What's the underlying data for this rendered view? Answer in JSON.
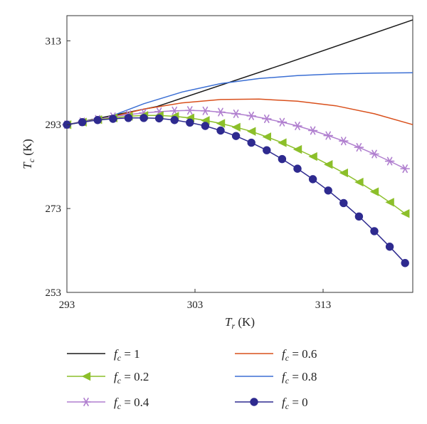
{
  "chart_data": {
    "type": "line",
    "xlabel": {
      "main": "T",
      "sub": "r",
      "unit": " (K)"
    },
    "ylabel": {
      "main": "T",
      "sub": "c",
      "unit": " (K)"
    },
    "xlim": [
      293,
      320
    ],
    "ylim": [
      253,
      319
    ],
    "xticks": [
      293,
      303,
      313
    ],
    "yticks": [
      253,
      273,
      293,
      313
    ],
    "grid": false,
    "legend_position": "bottom",
    "series": [
      {
        "name": "f_c = 1",
        "legend_prefix": "f",
        "legend_sub": "c",
        "legend_value": " = 1",
        "color": "#1a1a1a",
        "marker": "none",
        "x": [
          293,
          300,
          310,
          320
        ],
        "y": [
          293,
          297.3,
          307.5,
          318
        ]
      },
      {
        "name": "f_c = 0.8",
        "legend_prefix": "f",
        "legend_sub": "c",
        "legend_value": " = 0.8",
        "color": "#3b6fd4",
        "marker": "none",
        "x": [
          293,
          296,
          299,
          302,
          305,
          308,
          311,
          314,
          317,
          320
        ],
        "y": [
          293,
          294.5,
          298,
          300.8,
          302.8,
          304,
          304.7,
          305.1,
          305.3,
          305.4
        ]
      },
      {
        "name": "f_c = 0.6",
        "legend_prefix": "f",
        "legend_sub": "c",
        "legend_value": " = 0.6",
        "color": "#d9501c",
        "marker": "none",
        "x": [
          293,
          296,
          299,
          302,
          305,
          308,
          311,
          314,
          317,
          320
        ],
        "y": [
          293,
          294.5,
          296.7,
          298.2,
          299,
          299.1,
          298.6,
          297.5,
          295.6,
          293
        ]
      },
      {
        "name": "f_c = 0.4",
        "legend_prefix": "f",
        "legend_sub": "c",
        "legend_value": " = 0.4",
        "color": "#b07fcf",
        "marker": "asterisk",
        "x": [
          293,
          294.2,
          295.4,
          296.6,
          297.8,
          299,
          300.2,
          301.4,
          302.6,
          303.8,
          305,
          306.2,
          307.4,
          308.6,
          309.8,
          311,
          312.2,
          313.4,
          314.6,
          315.8,
          317,
          318.2,
          319.4
        ],
        "y": [
          293,
          293.7,
          294.3,
          294.9,
          295.4,
          295.8,
          296.1,
          296.3,
          296.4,
          296.3,
          296,
          295.6,
          295.1,
          294.4,
          293.6,
          292.7,
          291.6,
          290.4,
          289.1,
          287.6,
          286,
          284.3,
          282.5
        ]
      },
      {
        "name": "f_c = 0.2",
        "legend_prefix": "f",
        "legend_sub": "c",
        "legend_value": " = 0.2",
        "color": "#8cbf2a",
        "marker": "triangle-left",
        "x": [
          293,
          294.2,
          295.4,
          296.6,
          297.8,
          299,
          300.2,
          301.4,
          302.6,
          303.8,
          305,
          306.2,
          307.4,
          308.6,
          309.8,
          311,
          312.2,
          313.4,
          314.6,
          315.8,
          317,
          318.2,
          319.4
        ],
        "y": [
          293,
          293.6,
          294.2,
          294.6,
          295,
          295.2,
          295.2,
          295,
          294.6,
          294,
          293.3,
          292.4,
          291.4,
          290.1,
          288.7,
          287.1,
          285.4,
          283.5,
          281.5,
          279.3,
          277,
          274.5,
          271.8
        ]
      },
      {
        "name": "f_c = 0",
        "legend_prefix": "f",
        "legend_sub": "c",
        "legend_value": " = 0",
        "color": "#2e2a8f",
        "marker": "circle",
        "x": [
          293,
          294.2,
          295.4,
          296.6,
          297.8,
          299,
          300.2,
          301.4,
          302.6,
          303.8,
          305,
          306.2,
          307.4,
          308.6,
          309.8,
          311,
          312.2,
          313.4,
          314.6,
          315.8,
          317,
          318.2,
          319.4
        ],
        "y": [
          293,
          293.6,
          294.1,
          294.4,
          294.6,
          294.6,
          294.5,
          294.1,
          293.5,
          292.7,
          291.6,
          290.3,
          288.7,
          286.9,
          284.8,
          282.5,
          280,
          277.3,
          274.3,
          271.1,
          267.6,
          263.9,
          260
        ]
      }
    ],
    "legend_order": [
      0,
      4,
      3,
      2,
      1,
      5
    ]
  }
}
